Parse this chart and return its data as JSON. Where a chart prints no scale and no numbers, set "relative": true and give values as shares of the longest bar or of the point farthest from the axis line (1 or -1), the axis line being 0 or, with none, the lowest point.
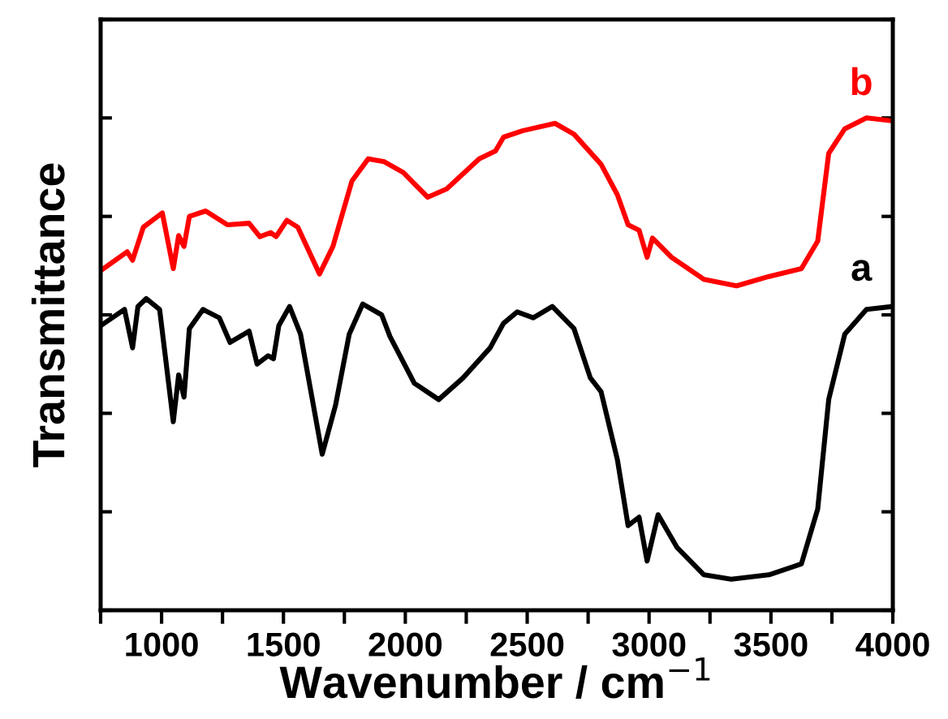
{
  "chart_data": {
    "type": "line",
    "xlabel": "Wavenumber / cm$^{−1}$",
    "ylabel": "Transmittance",
    "relative": true,
    "tick_labels": "x",
    "grid": false,
    "xlim": [
      750,
      4000
    ],
    "xticks": [
      {
        "value": 750,
        "label": null
      },
      1000,
      {
        "value": 1250,
        "label": null
      },
      1500,
      {
        "value": 1750,
        "label": null
      },
      2000,
      {
        "value": 2250,
        "label": null
      },
      2500,
      {
        "value": 2750,
        "label": null
      },
      3000,
      {
        "value": 3250,
        "label": null
      },
      3500,
      {
        "value": 3750,
        "label": null
      },
      4000
    ],
    "series": [
      {
        "name": "b",
        "color": "#ff0000",
        "x": [
          750,
          859,
          881,
          925,
          1003,
          1048,
          1070,
          1092,
          1114,
          1181,
          1270,
          1359,
          1403,
          1448,
          1470,
          1514,
          1559,
          1648,
          1703,
          1781,
          1848,
          1914,
          1992,
          2092,
          2170,
          2303,
          2370,
          2403,
          2481,
          2614,
          2692,
          2803,
          2870,
          2914,
          2959,
          2992,
          3014,
          3092,
          3225,
          3359,
          3492,
          3625,
          3692,
          3737,
          3803,
          3892,
          4000
        ],
        "values": [
          0.69,
          0.728,
          0.711,
          0.778,
          0.807,
          0.694,
          0.761,
          0.739,
          0.8,
          0.811,
          0.783,
          0.786,
          0.759,
          0.767,
          0.759,
          0.792,
          0.778,
          0.683,
          0.739,
          0.872,
          0.917,
          0.911,
          0.889,
          0.839,
          0.856,
          0.917,
          0.933,
          0.961,
          0.974,
          0.989,
          0.967,
          0.906,
          0.844,
          0.783,
          0.772,
          0.717,
          0.756,
          0.717,
          0.672,
          0.659,
          0.678,
          0.694,
          0.75,
          0.928,
          0.978,
          1,
          0.994
        ]
      },
      {
        "name": "a",
        "color": "#000000",
        "x": [
          750,
          848,
          881,
          903,
          937,
          992,
          1048,
          1070,
          1092,
          1114,
          1170,
          1237,
          1281,
          1359,
          1392,
          1437,
          1459,
          1481,
          1525,
          1570,
          1659,
          1714,
          1770,
          1825,
          1903,
          1937,
          2037,
          2137,
          2237,
          2348,
          2403,
          2459,
          2525,
          2603,
          2692,
          2759,
          2803,
          2870,
          2914,
          2959,
          2992,
          3037,
          3114,
          3225,
          3337,
          3492,
          3625,
          3692,
          3737,
          3803,
          3892,
          4000
        ],
        "values": [
          0.578,
          0.611,
          0.533,
          0.617,
          0.633,
          0.611,
          0.383,
          0.478,
          0.433,
          0.572,
          0.611,
          0.594,
          0.544,
          0.567,
          0.5,
          0.517,
          0.511,
          0.578,
          0.617,
          0.561,
          0.317,
          0.417,
          0.561,
          0.622,
          0.6,
          0.556,
          0.461,
          0.428,
          0.472,
          0.533,
          0.583,
          0.606,
          0.594,
          0.617,
          0.572,
          0.472,
          0.444,
          0.306,
          0.172,
          0.189,
          0.1,
          0.194,
          0.128,
          0.072,
          0.063,
          0.072,
          0.094,
          0.206,
          0.428,
          0.561,
          0.611,
          0.617
        ]
      }
    ]
  }
}
